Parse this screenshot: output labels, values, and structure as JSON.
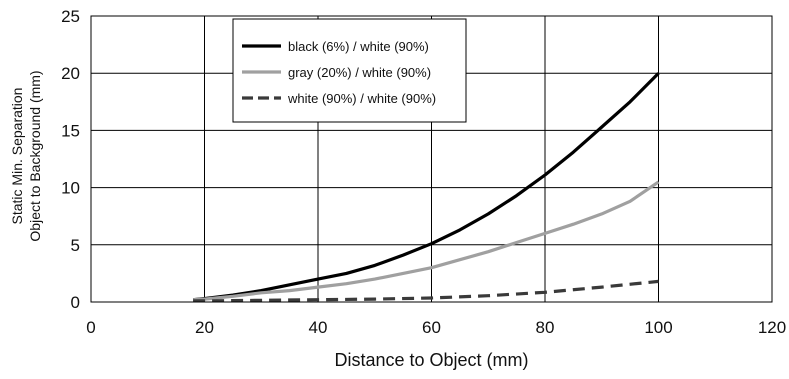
{
  "chart_data": {
    "type": "line",
    "title": "",
    "xlabel": "Distance to Object (mm)",
    "ylabel": [
      "Static Min. Separation",
      "Object to Background (mm)"
    ],
    "xlim": [
      0,
      120
    ],
    "ylim": [
      0,
      25
    ],
    "xticks": [
      0,
      20,
      40,
      60,
      80,
      100,
      120
    ],
    "yticks": [
      0,
      5,
      10,
      15,
      20,
      25
    ],
    "grid": true,
    "legend_position": "top-left inside",
    "series": [
      {
        "name": "black (6%) / white (90%)",
        "color": "#000000",
        "dash": "solid",
        "x": [
          18,
          20,
          25,
          30,
          35,
          40,
          45,
          50,
          55,
          60,
          65,
          70,
          75,
          80,
          85,
          90,
          95,
          100
        ],
        "y": [
          0.2,
          0.3,
          0.6,
          1.0,
          1.5,
          2.0,
          2.5,
          3.2,
          4.1,
          5.1,
          6.3,
          7.7,
          9.3,
          11.1,
          13.1,
          15.3,
          17.5,
          20.0
        ]
      },
      {
        "name": "gray (20%) / white (90%)",
        "color": "#a0a0a0",
        "dash": "solid",
        "x": [
          18,
          20,
          25,
          30,
          35,
          40,
          45,
          50,
          55,
          60,
          65,
          70,
          75,
          80,
          85,
          90,
          95,
          100
        ],
        "y": [
          0.2,
          0.25,
          0.5,
          0.8,
          1.0,
          1.3,
          1.6,
          2.0,
          2.5,
          3.0,
          3.7,
          4.4,
          5.2,
          6.0,
          6.8,
          7.7,
          8.8,
          10.5
        ]
      },
      {
        "name": "white (90%) / white (90%)",
        "color": "#3a3a3a",
        "dash": "dashed",
        "x": [
          18,
          20,
          30,
          40,
          50,
          60,
          70,
          80,
          90,
          100
        ],
        "y": [
          0.1,
          0.1,
          0.15,
          0.2,
          0.25,
          0.35,
          0.55,
          0.85,
          1.3,
          1.8
        ]
      }
    ]
  }
}
